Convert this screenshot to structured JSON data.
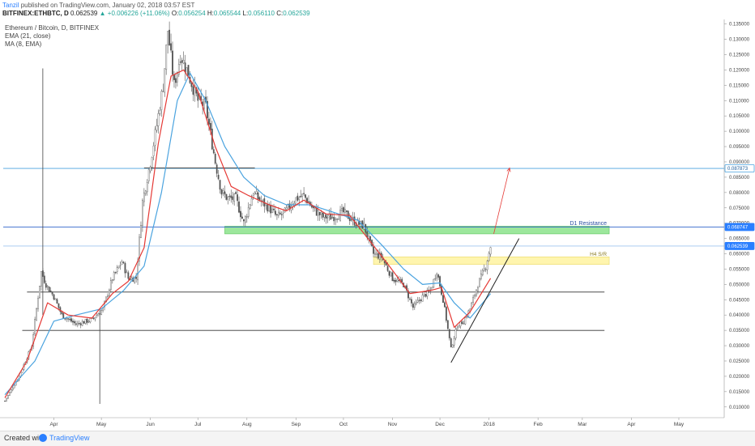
{
  "header": {
    "author": "Tanzil",
    "published": "published on TradingView.com, January 02, 2018 03:57 EST",
    "symbol": "BITFINEX:ETHBTC, D",
    "last": "0.062539",
    "change_arrow": "▲",
    "change": "+0.006226 (+11.06%)",
    "o_label": "O:",
    "o_value": "0.056254",
    "h_label": "H:",
    "h_value": "0.065544",
    "l_label": "L:",
    "l_value": "0.056110",
    "c_label": "C:",
    "c_value": "0.062539"
  },
  "legend": {
    "title": "Ethereum / Bitcoin, D, BITFINEX",
    "ema": "EMA (21, close)",
    "ma": "MA (8, EMA)"
  },
  "footer": {
    "created": "Created with",
    "brand": "TradingView"
  },
  "colors": {
    "up_candle": "#555555",
    "down_candle": "#555555",
    "ema21": "#4aa3df",
    "ma8": "#e53935",
    "zone_green": "#8be38b",
    "zone_yellow": "#fff3a0",
    "resistance_line": "#3366cc",
    "price_line": "#2a7fff"
  },
  "chart_data": {
    "type": "candlestick",
    "y_axis_ticks": [
      "0.135000",
      "0.130000",
      "0.125000",
      "0.120000",
      "0.115000",
      "0.110000",
      "0.105000",
      "0.100000",
      "0.095000",
      "0.090000",
      "0.085000",
      "0.080000",
      "0.075000",
      "0.070000",
      "0.065000",
      "0.060000",
      "0.055000",
      "0.050000",
      "0.045000",
      "0.040000",
      "0.035000",
      "0.030000",
      "0.025000",
      "0.020000",
      "0.015000",
      "0.010000"
    ],
    "ylim": [
      0.0065,
      0.1365
    ],
    "x_axis_labels": [
      "Apr",
      "May",
      "Jun",
      "Jul",
      "Aug",
      "Sep",
      "Oct",
      "Nov",
      "Dec",
      "2018",
      "Feb",
      "Mar",
      "Apr",
      "May"
    ],
    "price_labels": [
      {
        "text": "0.087873",
        "value": 0.087873,
        "style": "outline"
      },
      {
        "text": "0.068747",
        "value": 0.068747,
        "style": "blue"
      },
      {
        "text": "0.062539",
        "value": 0.062539,
        "style": "blue"
      }
    ],
    "horizontal_lines": [
      {
        "value": 0.087873,
        "color": "#4aa3df",
        "from": "2017-01-01",
        "to": "end"
      },
      {
        "value": 0.06875,
        "color": "#3366cc",
        "from": "2017-01-01",
        "to": "end"
      },
      {
        "value": 0.06254,
        "color": "#9fc4ef",
        "from": "2017-01-01",
        "to": "end"
      },
      {
        "value": 0.088,
        "color": "#333333",
        "from": "2017-05-28",
        "to": "2017-08-06"
      },
      {
        "value": 0.0475,
        "color": "#333333",
        "from": "2017-03-15",
        "to": "2018-03-15"
      },
      {
        "value": 0.035,
        "color": "#333333",
        "from": "2017-03-12",
        "to": "2018-03-15"
      }
    ],
    "zones": [
      {
        "low": 0.0665,
        "high": 0.069,
        "from": "2017-07-18",
        "to": "2018-03-18",
        "color": "#8be38b",
        "label": "D1 Resistance"
      },
      {
        "low": 0.0565,
        "high": 0.059,
        "from": "2017-10-20",
        "to": "2018-03-18",
        "color": "#fff3a0",
        "label": "H4 S/R"
      }
    ],
    "trendline": {
      "from": {
        "date": "2017-12-08",
        "value": 0.0245
      },
      "to": {
        "date": "2018-01-20",
        "value": 0.065
      }
    },
    "arrow": {
      "from": {
        "date": "2018-01-04",
        "value": 0.0665
      },
      "to": {
        "date": "2018-01-14",
        "value": 0.088
      }
    },
    "vertical_wicks": [
      {
        "date": "2017-03-25",
        "high": 0.1205,
        "low": 0.04
      },
      {
        "date": "2017-04-30",
        "high": 0.042,
        "low": 0.011
      }
    ],
    "anchors": [
      [
        "2017-03-01",
        0.012
      ],
      [
        "2017-03-10",
        0.02
      ],
      [
        "2017-03-18",
        0.03
      ],
      [
        "2017-03-24",
        0.054
      ],
      [
        "2017-03-27",
        0.05
      ],
      [
        "2017-04-01",
        0.046
      ],
      [
        "2017-04-06",
        0.04
      ],
      [
        "2017-04-15",
        0.037
      ],
      [
        "2017-04-25",
        0.0385
      ],
      [
        "2017-05-02",
        0.042
      ],
      [
        "2017-05-08",
        0.052
      ],
      [
        "2017-05-14",
        0.0575
      ],
      [
        "2017-05-18",
        0.052
      ],
      [
        "2017-05-23",
        0.052
      ],
      [
        "2017-05-27",
        0.077
      ],
      [
        "2017-06-01",
        0.09
      ],
      [
        "2017-06-05",
        0.102
      ],
      [
        "2017-06-09",
        0.115
      ],
      [
        "2017-06-12",
        0.133
      ],
      [
        "2017-06-16",
        0.115
      ],
      [
        "2017-06-20",
        0.125
      ],
      [
        "2017-06-24",
        0.12
      ],
      [
        "2017-07-01",
        0.11
      ],
      [
        "2017-07-06",
        0.108
      ],
      [
        "2017-07-12",
        0.09
      ],
      [
        "2017-07-16",
        0.08
      ],
      [
        "2017-07-20",
        0.078
      ],
      [
        "2017-07-25",
        0.078
      ],
      [
        "2017-07-30",
        0.07
      ],
      [
        "2017-08-05",
        0.08
      ],
      [
        "2017-08-10",
        0.077
      ],
      [
        "2017-08-15",
        0.075
      ],
      [
        "2017-08-20",
        0.072
      ],
      [
        "2017-08-25",
        0.0735
      ],
      [
        "2017-09-01",
        0.078
      ],
      [
        "2017-09-06",
        0.079
      ],
      [
        "2017-09-12",
        0.0745
      ],
      [
        "2017-09-18",
        0.072
      ],
      [
        "2017-09-24",
        0.072
      ],
      [
        "2017-10-01",
        0.0735
      ],
      [
        "2017-10-08",
        0.0705
      ],
      [
        "2017-10-14",
        0.069
      ],
      [
        "2017-10-20",
        0.06
      ],
      [
        "2017-10-25",
        0.059
      ],
      [
        "2017-11-01",
        0.052
      ],
      [
        "2017-11-08",
        0.05
      ],
      [
        "2017-11-14",
        0.0425
      ],
      [
        "2017-11-20",
        0.046
      ],
      [
        "2017-11-25",
        0.048
      ],
      [
        "2017-11-29",
        0.0545
      ],
      [
        "2017-12-03",
        0.045
      ],
      [
        "2017-12-08",
        0.029
      ],
      [
        "2017-12-12",
        0.0365
      ],
      [
        "2017-12-16",
        0.038
      ],
      [
        "2017-12-20",
        0.042
      ],
      [
        "2017-12-25",
        0.05
      ],
      [
        "2017-12-30",
        0.056
      ],
      [
        "2018-01-02",
        0.062539
      ]
    ],
    "ema21_points": [
      [
        "2017-03-01",
        0.014
      ],
      [
        "2017-03-20",
        0.025
      ],
      [
        "2017-04-01",
        0.038
      ],
      [
        "2017-04-15",
        0.04
      ],
      [
        "2017-05-01",
        0.042
      ],
      [
        "2017-05-15",
        0.048
      ],
      [
        "2017-05-28",
        0.056
      ],
      [
        "2017-06-08",
        0.08
      ],
      [
        "2017-06-18",
        0.11
      ],
      [
        "2017-06-26",
        0.119
      ],
      [
        "2017-07-06",
        0.11
      ],
      [
        "2017-07-18",
        0.095
      ],
      [
        "2017-07-30",
        0.085
      ],
      [
        "2017-08-12",
        0.079
      ],
      [
        "2017-08-26",
        0.076
      ],
      [
        "2017-09-10",
        0.076
      ],
      [
        "2017-09-25",
        0.0735
      ],
      [
        "2017-10-10",
        0.071
      ],
      [
        "2017-10-25",
        0.063
      ],
      [
        "2017-11-08",
        0.055
      ],
      [
        "2017-11-20",
        0.05
      ],
      [
        "2017-12-01",
        0.0505
      ],
      [
        "2017-12-10",
        0.044
      ],
      [
        "2017-12-20",
        0.039
      ],
      [
        "2018-01-02",
        0.047
      ]
    ],
    "ma8_points": [
      [
        "2017-03-01",
        0.013
      ],
      [
        "2017-03-15",
        0.025
      ],
      [
        "2017-03-28",
        0.044
      ],
      [
        "2017-04-10",
        0.04
      ],
      [
        "2017-04-25",
        0.039
      ],
      [
        "2017-05-08",
        0.047
      ],
      [
        "2017-05-18",
        0.051
      ],
      [
        "2017-05-28",
        0.062
      ],
      [
        "2017-06-06",
        0.096
      ],
      [
        "2017-06-14",
        0.118
      ],
      [
        "2017-06-22",
        0.12
      ],
      [
        "2017-07-01",
        0.113
      ],
      [
        "2017-07-12",
        0.095
      ],
      [
        "2017-07-22",
        0.082
      ],
      [
        "2017-08-02",
        0.079
      ],
      [
        "2017-08-15",
        0.076
      ],
      [
        "2017-08-26",
        0.074
      ],
      [
        "2017-09-06",
        0.0775
      ],
      [
        "2017-09-20",
        0.073
      ],
      [
        "2017-10-05",
        0.0725
      ],
      [
        "2017-10-18",
        0.064
      ],
      [
        "2017-10-30",
        0.056
      ],
      [
        "2017-11-12",
        0.047
      ],
      [
        "2017-11-25",
        0.048
      ],
      [
        "2017-12-02",
        0.049
      ],
      [
        "2017-12-10",
        0.036
      ],
      [
        "2017-12-20",
        0.041
      ],
      [
        "2018-01-02",
        0.052
      ]
    ]
  }
}
